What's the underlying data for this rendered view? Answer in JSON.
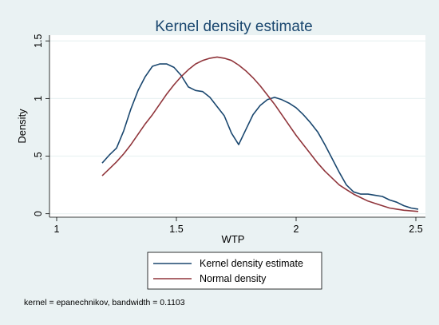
{
  "chart_data": {
    "type": "line",
    "title": "Kernel density estimate",
    "xlabel": "WTP",
    "ylabel": "Density",
    "xlim": [
      0.97,
      2.54
    ],
    "ylim": [
      -0.03,
      1.55
    ],
    "xticks": [
      1,
      1.5,
      2,
      2.5
    ],
    "xtick_labels": [
      "1",
      "1.5",
      "2",
      "2.5"
    ],
    "yticks": [
      0,
      0.5,
      1,
      1.5
    ],
    "ytick_labels": [
      "0",
      ".5",
      "1",
      "1.5"
    ],
    "grid": "horizontal",
    "legend_position": "bottom",
    "note": "kernel = epanechnikov, bandwidth = 0.1103",
    "colors": {
      "kde": "#1a476f",
      "normal": "#90353b",
      "plot_bg": "#ffffff",
      "outer_bg": "#eaf2f3",
      "title": "#1a476f"
    },
    "series": [
      {
        "name": "Kernel density estimate",
        "color": "#1a476f",
        "x": [
          1.19,
          1.22,
          1.25,
          1.28,
          1.31,
          1.34,
          1.37,
          1.4,
          1.43,
          1.46,
          1.49,
          1.52,
          1.55,
          1.58,
          1.61,
          1.64,
          1.67,
          1.7,
          1.73,
          1.76,
          1.79,
          1.82,
          1.85,
          1.88,
          1.91,
          1.94,
          1.97,
          2.0,
          2.03,
          2.06,
          2.09,
          2.12,
          2.15,
          2.18,
          2.21,
          2.24,
          2.27,
          2.3,
          2.33,
          2.36,
          2.39,
          2.42,
          2.45,
          2.48,
          2.51
        ],
        "values": [
          0.44,
          0.51,
          0.57,
          0.72,
          0.91,
          1.07,
          1.19,
          1.28,
          1.3,
          1.3,
          1.27,
          1.2,
          1.1,
          1.07,
          1.06,
          1.01,
          0.93,
          0.85,
          0.7,
          0.6,
          0.73,
          0.86,
          0.94,
          0.99,
          1.01,
          0.99,
          0.96,
          0.92,
          0.86,
          0.79,
          0.71,
          0.6,
          0.48,
          0.36,
          0.25,
          0.19,
          0.17,
          0.17,
          0.16,
          0.15,
          0.12,
          0.1,
          0.07,
          0.05,
          0.04
        ]
      },
      {
        "name": "Normal density",
        "color": "#90353b",
        "x": [
          1.19,
          1.22,
          1.25,
          1.28,
          1.31,
          1.34,
          1.37,
          1.4,
          1.43,
          1.46,
          1.49,
          1.52,
          1.55,
          1.58,
          1.61,
          1.64,
          1.67,
          1.7,
          1.73,
          1.76,
          1.79,
          1.82,
          1.85,
          1.88,
          1.91,
          1.94,
          1.97,
          2.0,
          2.03,
          2.06,
          2.09,
          2.12,
          2.15,
          2.18,
          2.21,
          2.24,
          2.27,
          2.3,
          2.33,
          2.36,
          2.39,
          2.42,
          2.45,
          2.48,
          2.51
        ],
        "values": [
          0.33,
          0.39,
          0.45,
          0.52,
          0.6,
          0.69,
          0.78,
          0.86,
          0.95,
          1.04,
          1.12,
          1.19,
          1.25,
          1.3,
          1.33,
          1.35,
          1.36,
          1.35,
          1.33,
          1.29,
          1.24,
          1.18,
          1.11,
          1.03,
          0.95,
          0.86,
          0.77,
          0.68,
          0.6,
          0.52,
          0.44,
          0.37,
          0.31,
          0.25,
          0.21,
          0.17,
          0.14,
          0.11,
          0.09,
          0.07,
          0.05,
          0.04,
          0.03,
          0.025,
          0.02
        ]
      }
    ]
  }
}
